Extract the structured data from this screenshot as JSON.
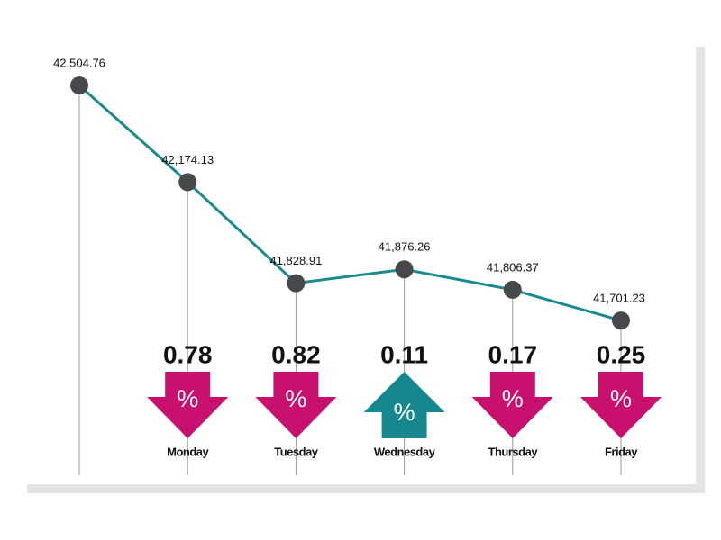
{
  "chart_data": {
    "type": "line",
    "categories": [
      null,
      "Monday",
      "Tuesday",
      "Wednesday",
      "Thursday",
      "Friday"
    ],
    "values": [
      42504.76,
      42174.13,
      41828.91,
      41876.26,
      41806.37,
      41701.23
    ],
    "value_labels": [
      "42,504.76",
      "42,174.13",
      "41,828.91",
      "41,876.26",
      "41,806.37",
      "41,701.23"
    ],
    "color": "#1a8a8f",
    "marker_color": "#47484c",
    "ylim": [
      41600,
      42600
    ],
    "changes": {
      "values": [
        0.78,
        0.82,
        0.11,
        0.17,
        0.25
      ],
      "directions": [
        "down",
        "down",
        "up",
        "down",
        "down"
      ],
      "unit": "%",
      "down_color": "#c8106e",
      "up_color": "#16878f"
    }
  }
}
